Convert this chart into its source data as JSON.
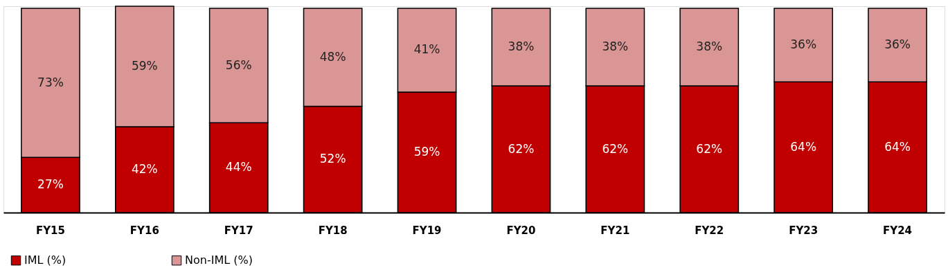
{
  "chart_data": {
    "type": "bar",
    "stacked": true,
    "legend": "bottom",
    "categories": [
      "FY15",
      "FY16",
      "FY17",
      "FY18",
      "FY19",
      "FY20",
      "FY21",
      "FY22",
      "FY23",
      "FY24"
    ],
    "series": [
      {
        "name": "IML (%)",
        "color": "#c00000",
        "values": [
          27,
          42,
          44,
          52,
          59,
          62,
          62,
          62,
          64,
          64
        ],
        "value_labels": [
          "27%",
          "42%",
          "44%",
          "52%",
          "59%",
          "62%",
          "62%",
          "62%",
          "64%",
          "64%"
        ]
      },
      {
        "name": "Non-IML (%)",
        "color": "#d99694",
        "values": [
          73,
          59,
          56,
          48,
          41,
          38,
          38,
          38,
          36,
          36
        ],
        "value_labels": [
          "73%",
          "59%",
          "56%",
          "48%",
          "41%",
          "38%",
          "38%",
          "38%",
          "36%",
          "36%"
        ]
      }
    ]
  }
}
